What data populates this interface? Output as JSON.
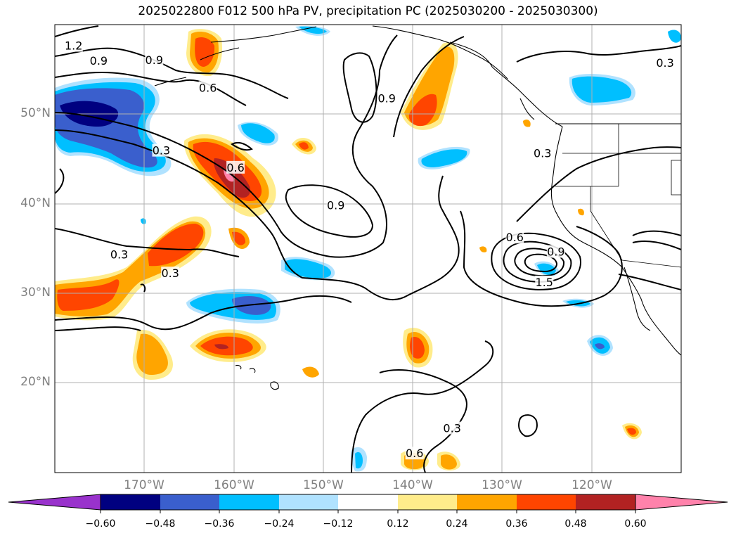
{
  "title": "2025022800 F012 500 hPa PV, precipitation PC (2025030200 - 2025030300)",
  "map": {
    "lon_labels": [
      "170°W",
      "160°W",
      "150°W",
      "140°W",
      "130°W",
      "120°W"
    ],
    "lat_labels": [
      "50°N",
      "40°N",
      "30°N",
      "20°N"
    ],
    "lon_range": [
      -180,
      -110
    ],
    "lat_range": [
      10,
      60
    ],
    "contour_labels": [
      {
        "text": "1.2",
        "lon": -177.9,
        "lat": 57.6
      },
      {
        "text": "0.9",
        "lon": -175.1,
        "lat": 55.9
      },
      {
        "text": "0.9",
        "lon": -168.9,
        "lat": 56.0
      },
      {
        "text": "0.6",
        "lon": -162.9,
        "lat": 52.9
      },
      {
        "text": "0.6",
        "lon": -159.8,
        "lat": 44.0
      },
      {
        "text": "0.9",
        "lon": -142.9,
        "lat": 51.7
      },
      {
        "text": "0.9",
        "lon": -148.6,
        "lat": 39.8
      },
      {
        "text": "0.3",
        "lon": -168.1,
        "lat": 45.9
      },
      {
        "text": "0.3",
        "lon": -172.8,
        "lat": 34.3
      },
      {
        "text": "0.3",
        "lon": -167.1,
        "lat": 32.2
      },
      {
        "text": "0.6",
        "lon": -128.6,
        "lat": 36.2
      },
      {
        "text": "0.9",
        "lon": -124.0,
        "lat": 34.6
      },
      {
        "text": "0.3",
        "lon": -125.5,
        "lat": 45.6
      },
      {
        "text": "0.3",
        "lon": -111.8,
        "lat": 55.7
      },
      {
        "text": "1.5",
        "lon": -125.3,
        "lat": 31.2
      },
      {
        "text": "0.6",
        "lon": -139.8,
        "lat": 12.1
      },
      {
        "text": "0.3",
        "lon": -135.6,
        "lat": 14.9
      }
    ],
    "precip_colors": [
      "#9932cc",
      "#000080",
      "#3a5fcd",
      "#00bfff",
      "#b0e2ff",
      "#ffffff",
      "#ffec8b",
      "#ffa500",
      "#ff4500",
      "#b22222",
      "#ff82ab"
    ]
  },
  "colorbar": {
    "tick_labels": [
      "−0.60",
      "−0.48",
      "−0.36",
      "−0.24",
      "−0.12",
      "0.12",
      "0.24",
      "0.36",
      "0.48",
      "0.60"
    ],
    "colors": [
      "#9932cc",
      "#000080",
      "#3a5fcd",
      "#00bfff",
      "#b0e2ff",
      "#ffffff",
      "#ffec8b",
      "#ffa500",
      "#ff4500",
      "#b22222",
      "#ff82ab"
    ]
  }
}
